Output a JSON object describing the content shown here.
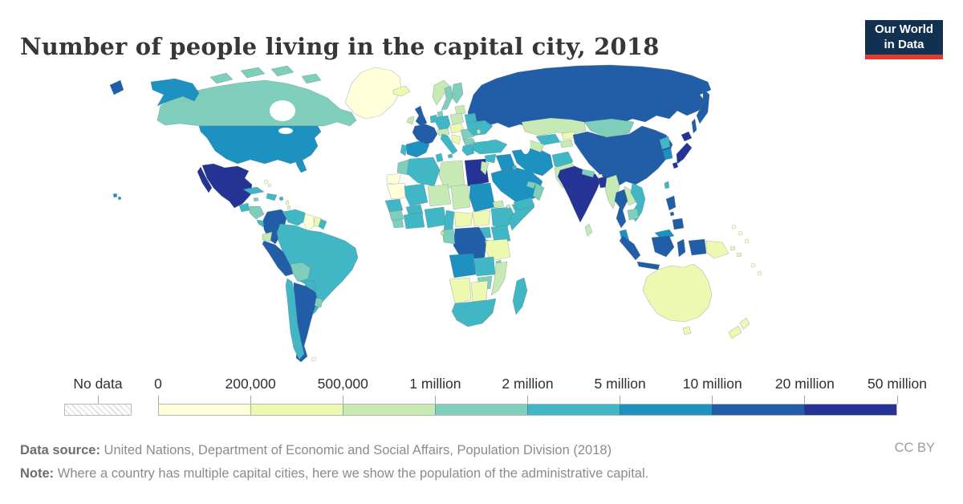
{
  "header": {
    "title": "Number of people living in the capital city, 2018"
  },
  "logo": {
    "line1": "Our World",
    "line2": "in Data",
    "bg_color": "#12304f",
    "accent_color": "#dc3c32"
  },
  "legend": {
    "no_data_label": "No data",
    "tick_labels": [
      "0",
      "200,000",
      "500,000",
      "1 million",
      "2 million",
      "5 million",
      "10 million",
      "20 million",
      "50 million"
    ]
  },
  "footer": {
    "source_label": "Data source:",
    "source_text": " United Nations, Department of Economic and Social Affairs, Population Division (2018)",
    "note_label": "Note:",
    "note_text": " Where a country has multiple capital cities, here we show the population of the administrative capital.",
    "license": "CC BY"
  },
  "chart_data": {
    "type": "choropleth",
    "title": "Number of people living in the capital city, 2018",
    "unit": "people living in the capital city",
    "legend_position": "bottom",
    "bins": [
      {
        "id": "b1",
        "range": "0 – 200,000",
        "color": "#ffffd9"
      },
      {
        "id": "b2",
        "range": "200,000 – 500,000",
        "color": "#edf8b1"
      },
      {
        "id": "b3",
        "range": "500,000 – 1 million",
        "color": "#c7e9b4"
      },
      {
        "id": "b4",
        "range": "1 million – 2 million",
        "color": "#7fcdbb"
      },
      {
        "id": "b5",
        "range": "2 million – 5 million",
        "color": "#41b6c4"
      },
      {
        "id": "b6",
        "range": "5 million – 10 million",
        "color": "#1d91c0"
      },
      {
        "id": "b7",
        "range": "10 million – 20 million",
        "color": "#225ea8"
      },
      {
        "id": "b8",
        "range": "20 million – 50 million",
        "color": "#253494"
      }
    ],
    "country_bins": {
      "russia": "b7",
      "canada": "b4",
      "usa": "b6",
      "greenland": "b1",
      "mexico": "b8",
      "guatemala": "b5",
      "honduras-nicaragua": "b4",
      "costa-rica-panama": "b5",
      "cuba": "b5",
      "hispaniola": "b5",
      "bahamas": "b1",
      "jamaica": "b4",
      "lesser-antilles": "b2",
      "puerto-rico": "b5",
      "colombia": "b7",
      "venezuela": "b5",
      "guyana": "b1",
      "suriname": "b2",
      "french-guiana": "b5",
      "ecuador": "b3",
      "peru": "b7",
      "brazil": "b5",
      "bolivia": "b4",
      "paraguay": "b5",
      "chile": "b5",
      "argentina": "b7",
      "uruguay": "b4",
      "falkland-islands": "b1",
      "iceland": "b2",
      "uk": "b7",
      "ireland": "b3",
      "norway": "b3",
      "sweden": "b4",
      "finland": "b4",
      "baltics": "b3",
      "denmark": "b4",
      "germany": "b5",
      "benelux": "b5",
      "poland": "b3",
      "czech-hungary": "b2",
      "france": "b7",
      "switzerland-austria": "b3",
      "spain": "b6",
      "portugal": "b5",
      "italy": "b5",
      "balkans": "b2",
      "romania": "b4",
      "bulgaria": "b4",
      "greece": "b5",
      "belarus": "b5",
      "ukraine": "b5",
      "moldova": "b3",
      "morocco": "b4",
      "western-sahara": "b1",
      "algeria": "b5",
      "tunisia": "b5",
      "libya": "b3",
      "egypt": "b8",
      "mauritania": "b1",
      "mali": "b5",
      "burkina-faso": "b5",
      "niger": "b3",
      "chad": "b3",
      "sudan": "b6",
      "eritrea": "b3",
      "senegal-gambia": "b5",
      "guinea": "b4",
      "sierra-leone-liberia": "b4",
      "ivory-coast-ghana": "b5",
      "nigeria": "b5",
      "cameroon": "b5",
      "central-african-republic": "b2",
      "south-sudan": "b2",
      "ethiopia": "b5",
      "somalia": "b5",
      "djibouti": "b3",
      "uganda": "b5",
      "kenya": "b5",
      "drc": "b7",
      "rwanda-burundi": "b4",
      "tanzania": "b2",
      "gabon-congo": "b4",
      "angola": "b6",
      "zambia": "b5",
      "malawi": "b4",
      "mozambique": "b3",
      "zimbabwe": "b4",
      "namibia": "b2",
      "botswana": "b2",
      "south-africa": "b5",
      "madagascar": "b5",
      "equatorial-guinea": "b3",
      "turkey": "b5",
      "cyprus": "b4",
      "syria": "b5",
      "israel-jordan": "b3",
      "iraq": "b6",
      "iran": "b6",
      "afghanistan": "b5",
      "pakistan": "b3",
      "saudi-arabia": "b6",
      "yemen": "b5",
      "oman": "b4",
      "uae-qatar": "b4",
      "kuwait": "b5",
      "kazakhstan": "b3",
      "uzbekistan": "b5",
      "turkmenistan": "b3",
      "kyrgyzstan": "b2",
      "tajikistan": "b3",
      "mongolia": "b4",
      "china": "b7",
      "north-korea": "b5",
      "south-korea": "b6",
      "japan": "b8",
      "taiwan": "b5",
      "india": "b8",
      "nepal": "b4",
      "bhutan": "b1",
      "bangladesh": "b8",
      "sri-lanka": "b3",
      "myanmar": "b3",
      "thailand": "b7",
      "laos": "b3",
      "vietnam": "b5",
      "cambodia": "b4",
      "malaysia": "b6",
      "indonesia": "b7",
      "philippines": "b7",
      "papua-new-guinea": "b2",
      "australia": "b2",
      "new-zealand": "b2",
      "pacific-islands": "b1"
    }
  }
}
